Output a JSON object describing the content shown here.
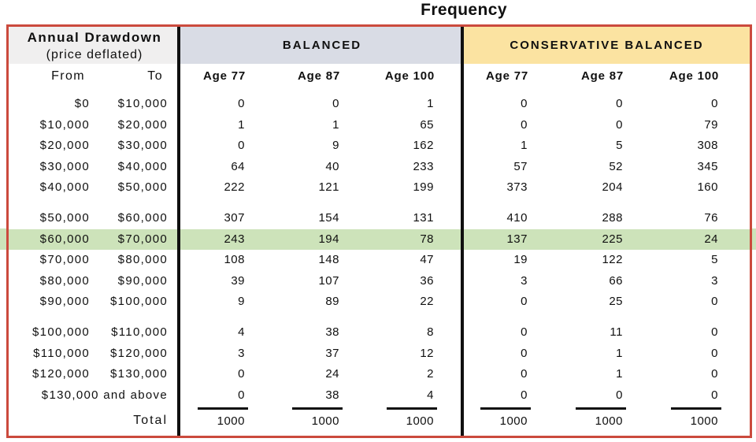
{
  "title": "Frequency",
  "colors": {
    "border_red": "#CB4A3D",
    "banner_balanced_bg": "#D9DCE5",
    "banner_conservative_bg": "#FBE3A1",
    "row_header_gray_bg": "#F0EFEF",
    "highlight_green": "#CDE3BA",
    "divider_black": "#101010"
  },
  "table": {
    "row_header": {
      "line1": "Annual Drawdown",
      "line2": "(price deflated)",
      "from_label": "From",
      "to_label": "To",
      "total_label": "Total"
    },
    "sections": [
      {
        "label": "BALANCED",
        "columns": [
          "Age 77",
          "Age 87",
          "Age 100"
        ]
      },
      {
        "label": "CONSERVATIVE BALANCED",
        "columns": [
          "Age 77",
          "Age 87",
          "Age 100"
        ]
      }
    ],
    "groups": [
      [
        {
          "from": "$0",
          "to": "$10,000",
          "balanced": [
            0,
            0,
            1
          ],
          "conservative": [
            0,
            0,
            0
          ]
        },
        {
          "from": "$10,000",
          "to": "$20,000",
          "balanced": [
            1,
            1,
            65
          ],
          "conservative": [
            0,
            0,
            79
          ]
        },
        {
          "from": "$20,000",
          "to": "$30,000",
          "balanced": [
            0,
            9,
            162
          ],
          "conservative": [
            1,
            5,
            308
          ]
        },
        {
          "from": "$30,000",
          "to": "$40,000",
          "balanced": [
            64,
            40,
            233
          ],
          "conservative": [
            57,
            52,
            345
          ]
        },
        {
          "from": "$40,000",
          "to": "$50,000",
          "balanced": [
            222,
            121,
            199
          ],
          "conservative": [
            373,
            204,
            160
          ]
        }
      ],
      [
        {
          "from": "$50,000",
          "to": "$60,000",
          "balanced": [
            307,
            154,
            131
          ],
          "conservative": [
            410,
            288,
            76
          ]
        },
        {
          "from": "$60,000",
          "to": "$70,000",
          "balanced": [
            243,
            194,
            78
          ],
          "conservative": [
            137,
            225,
            24
          ],
          "highlight": true
        },
        {
          "from": "$70,000",
          "to": "$80,000",
          "balanced": [
            108,
            148,
            47
          ],
          "conservative": [
            19,
            122,
            5
          ]
        },
        {
          "from": "$80,000",
          "to": "$90,000",
          "balanced": [
            39,
            107,
            36
          ],
          "conservative": [
            3,
            66,
            3
          ]
        },
        {
          "from": "$90,000",
          "to": "$100,000",
          "balanced": [
            9,
            89,
            22
          ],
          "conservative": [
            0,
            25,
            0
          ]
        }
      ],
      [
        {
          "from": "$100,000",
          "to": "$110,000",
          "balanced": [
            4,
            38,
            8
          ],
          "conservative": [
            0,
            11,
            0
          ]
        },
        {
          "from": "$110,000",
          "to": "$120,000",
          "balanced": [
            3,
            37,
            12
          ],
          "conservative": [
            0,
            1,
            0
          ]
        },
        {
          "from": "$120,000",
          "to": "$130,000",
          "balanced": [
            0,
            24,
            2
          ],
          "conservative": [
            0,
            1,
            0
          ]
        },
        {
          "label": "$130,000 and above",
          "balanced": [
            0,
            38,
            4
          ],
          "conservative": [
            0,
            0,
            0
          ]
        }
      ]
    ],
    "totals": {
      "balanced": [
        "1000",
        "1000",
        "1000"
      ],
      "conservative": [
        "1000",
        "1000",
        "1000"
      ]
    }
  },
  "chart_data": {
    "type": "table",
    "title": "Frequency",
    "row_dimension": "Annual Drawdown (price deflated)",
    "column_groups": [
      "BALANCED",
      "CONSERVATIVE BALANCED"
    ],
    "columns": [
      "Age 77",
      "Age 87",
      "Age 100",
      "Age 77",
      "Age 87",
      "Age 100"
    ],
    "rows": [
      {
        "range": "$0 - $10,000",
        "values": [
          0,
          0,
          1,
          0,
          0,
          0
        ]
      },
      {
        "range": "$10,000 - $20,000",
        "values": [
          1,
          1,
          65,
          0,
          0,
          79
        ]
      },
      {
        "range": "$20,000 - $30,000",
        "values": [
          0,
          9,
          162,
          1,
          5,
          308
        ]
      },
      {
        "range": "$30,000 - $40,000",
        "values": [
          64,
          40,
          233,
          57,
          52,
          345
        ]
      },
      {
        "range": "$40,000 - $50,000",
        "values": [
          222,
          121,
          199,
          373,
          204,
          160
        ]
      },
      {
        "range": "$50,000 - $60,000",
        "values": [
          307,
          154,
          131,
          410,
          288,
          76
        ]
      },
      {
        "range": "$60,000 - $70,000",
        "values": [
          243,
          194,
          78,
          137,
          225,
          24
        ]
      },
      {
        "range": "$70,000 - $80,000",
        "values": [
          108,
          148,
          47,
          19,
          122,
          5
        ]
      },
      {
        "range": "$80,000 - $90,000",
        "values": [
          39,
          107,
          36,
          3,
          66,
          3
        ]
      },
      {
        "range": "$90,000 - $100,000",
        "values": [
          9,
          89,
          22,
          0,
          25,
          0
        ]
      },
      {
        "range": "$100,000 - $110,000",
        "values": [
          4,
          38,
          8,
          0,
          11,
          0
        ]
      },
      {
        "range": "$110,000 - $120,000",
        "values": [
          3,
          37,
          12,
          0,
          1,
          0
        ]
      },
      {
        "range": "$120,000 - $130,000",
        "values": [
          0,
          24,
          2,
          0,
          1,
          0
        ]
      },
      {
        "range": "$130,000 and above",
        "values": [
          0,
          38,
          4,
          0,
          0,
          0
        ]
      }
    ],
    "totals": [
      1000,
      1000,
      1000,
      1000,
      1000,
      1000
    ],
    "highlighted_row": "$60,000 - $70,000"
  }
}
